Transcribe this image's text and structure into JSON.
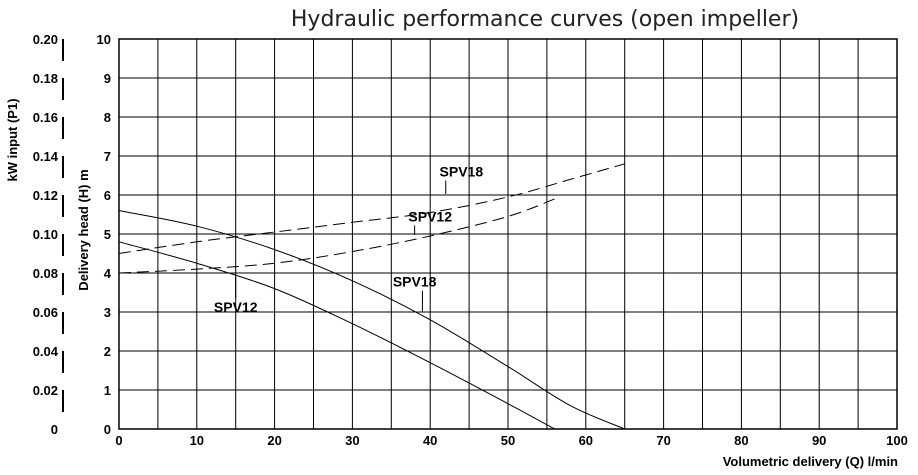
{
  "chart_data": {
    "type": "line",
    "title": "Hydraulic performance curves (open impeller)",
    "xlabel": "Volumetric delivery (Q) l/min",
    "ylabel": "Delivery head (H) m",
    "y2label": "kW input (P1)",
    "xlim": [
      0,
      100
    ],
    "ylim": [
      0,
      10
    ],
    "y2lim": [
      0,
      0.2
    ],
    "x_ticks": [
      "0",
      "10",
      "20",
      "30",
      "40",
      "50",
      "60",
      "70",
      "80",
      "90",
      "100"
    ],
    "y_ticks": [
      "0",
      "1",
      "2",
      "3",
      "4",
      "5",
      "6",
      "7",
      "8",
      "9",
      "10"
    ],
    "y2_ticks": [
      "0",
      "0.02",
      "0.04",
      "0.06",
      "0.08",
      "0.10",
      "0.12",
      "0.14",
      "0.16",
      "0.18",
      "0.20"
    ],
    "grid": true,
    "series": [
      {
        "name": "SPV18",
        "kind": "head",
        "style": "solid",
        "points": [
          [
            0,
            5.6
          ],
          [
            10,
            5.2
          ],
          [
            20,
            4.6
          ],
          [
            30,
            3.8
          ],
          [
            40,
            2.8
          ],
          [
            50,
            1.6
          ],
          [
            58,
            0.6
          ],
          [
            65,
            0
          ]
        ]
      },
      {
        "name": "SPV12",
        "kind": "head",
        "style": "solid",
        "points": [
          [
            0,
            4.8
          ],
          [
            10,
            4.25
          ],
          [
            20,
            3.6
          ],
          [
            30,
            2.7
          ],
          [
            40,
            1.7
          ],
          [
            50,
            0.65
          ],
          [
            56,
            0
          ]
        ]
      },
      {
        "name": "SPV18",
        "kind": "power",
        "style": "dashed",
        "points": [
          [
            0,
            0.09
          ],
          [
            10,
            0.096
          ],
          [
            20,
            0.101
          ],
          [
            30,
            0.106
          ],
          [
            40,
            0.111
          ],
          [
            50,
            0.119
          ],
          [
            58,
            0.128
          ],
          [
            65,
            0.136
          ]
        ]
      },
      {
        "name": "SPV12",
        "kind": "power",
        "style": "dashed",
        "points": [
          [
            0,
            0.08
          ],
          [
            10,
            0.082
          ],
          [
            20,
            0.085
          ],
          [
            30,
            0.091
          ],
          [
            40,
            0.099
          ],
          [
            50,
            0.109
          ],
          [
            56,
            0.118
          ]
        ]
      }
    ],
    "annotations": [
      {
        "text": "SPV18",
        "series_index": 2,
        "at": [
          44,
          0.1295
        ],
        "label_x": 42,
        "leader_to": 0.1205
      },
      {
        "text": "SPV12",
        "series_index": 3,
        "at": [
          40,
          0.1065
        ],
        "label_x": 38,
        "leader_to": 0.0995
      },
      {
        "text": "SPV18",
        "series_index": 0,
        "at": [
          38,
          3.65
        ],
        "label_x": 39,
        "leader_to": 3.0
      },
      {
        "text": "SPV12",
        "series_index": 1,
        "at": [
          15,
          3.0
        ],
        "label_x": 15,
        "leader_to": 3.9
      }
    ]
  }
}
